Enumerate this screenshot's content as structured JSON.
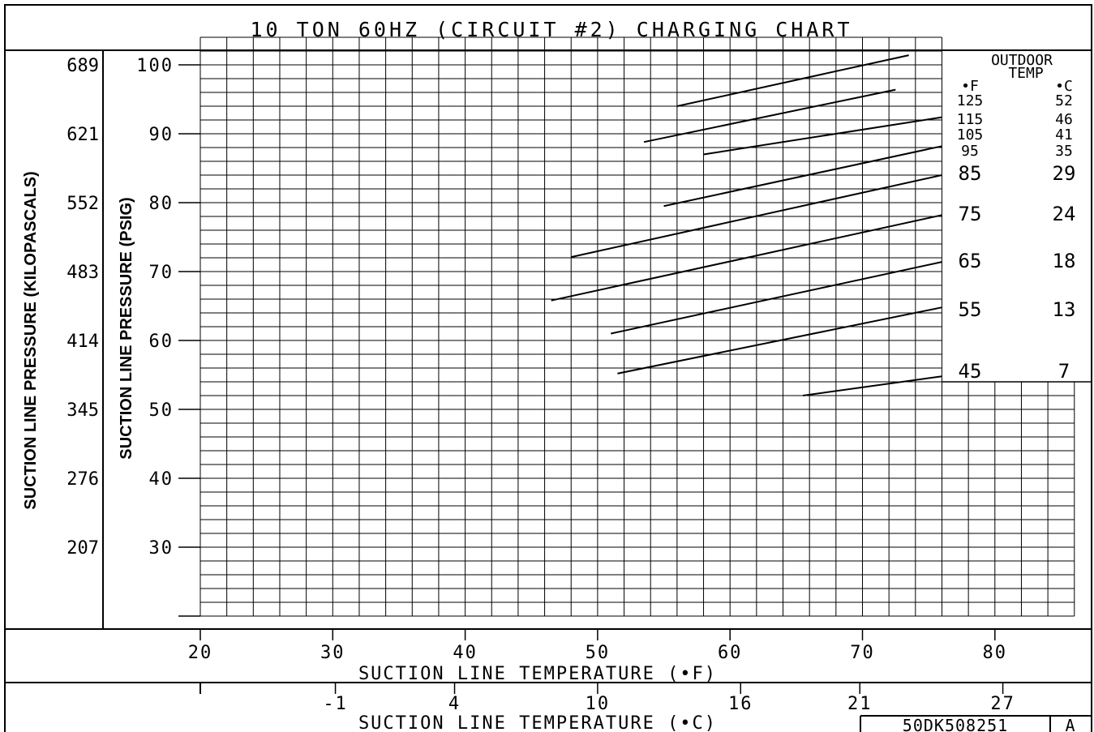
{
  "chart_data": {
    "type": "line",
    "title": "10 TON 60HZ (CIRCUIT #2) CHARGING CHART",
    "xlabel": "SUCTION LINE TEMPERATURE (•F)",
    "xlabel_secondary": "SUCTION LINE TEMPERATURE (•C)",
    "ylabel": "SUCTION LINE PRESSURE (PSIG)",
    "ylabel_secondary": "SUCTION LINE PRESSURE (KILOPASCALS)",
    "xlim": [
      20,
      86
    ],
    "ylim": [
      20,
      104
    ],
    "x_ticks": [
      "20",
      "30",
      "40",
      "50",
      "60",
      "70",
      "80"
    ],
    "x_ticks_secondary": [
      "-1",
      "4",
      "10",
      "16",
      "21",
      "27"
    ],
    "y_ticks": [
      "100",
      "90",
      "80",
      "70",
      "60",
      "50",
      "40",
      "30"
    ],
    "y_ticks_secondary": [
      "689",
      "621",
      "552",
      "483",
      "414",
      "345",
      "276",
      "207"
    ],
    "grid": true,
    "legend": {
      "title_line1": "OUTDOOR",
      "title_line2": "TEMP",
      "unit_f": "•F",
      "unit_c": "•C",
      "placement": "right"
    },
    "series": [
      {
        "name_f": "125",
        "name_c": "52",
        "x": [
          56.0,
          73.5
        ],
        "y": [
          94.0,
          101.4
        ]
      },
      {
        "name_f": "115",
        "name_c": "46",
        "x": [
          53.5,
          72.5
        ],
        "y": [
          88.8,
          96.4
        ]
      },
      {
        "name_f": "105",
        "name_c": "41",
        "x": [
          58.0,
          76.0
        ],
        "y": [
          87.0,
          92.4
        ]
      },
      {
        "name_f": "95",
        "name_c": "35",
        "x": [
          55.0,
          76.0
        ],
        "y": [
          79.5,
          88.2
        ]
      },
      {
        "name_f": "85",
        "name_c": "29",
        "x": [
          48.0,
          76.0
        ],
        "y": [
          72.1,
          84.0
        ]
      },
      {
        "name_f": "75",
        "name_c": "24",
        "x": [
          46.5,
          76.0
        ],
        "y": [
          65.8,
          78.2
        ]
      },
      {
        "name_f": "65",
        "name_c": "18",
        "x": [
          51.0,
          76.0
        ],
        "y": [
          61.0,
          71.4
        ]
      },
      {
        "name_f": "55",
        "name_c": "13",
        "x": [
          51.5,
          76.0
        ],
        "y": [
          55.2,
          64.8
        ]
      },
      {
        "name_f": "45",
        "name_c": "7",
        "x": [
          65.5,
          76.0
        ],
        "y": [
          52.0,
          54.8
        ]
      }
    ]
  },
  "drawing_number": "50DK508251",
  "revision": "A"
}
